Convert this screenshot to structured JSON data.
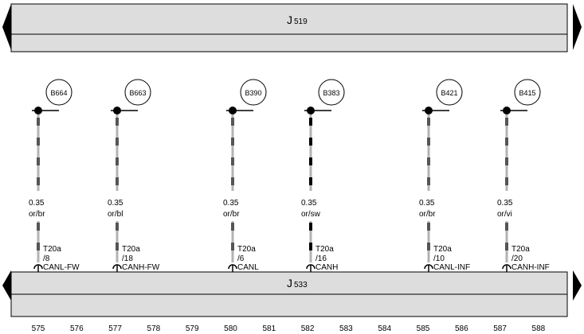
{
  "top_module": {
    "letter": "J",
    "number": "519"
  },
  "bottom_module": {
    "letter": "J",
    "number": "533"
  },
  "wires": [
    {
      "id": "B664",
      "gauge": "0.35",
      "color_code": "or/br",
      "connector": "T20a",
      "pin": "/8",
      "signal": "CANL-FW",
      "stripe": "gray"
    },
    {
      "id": "B663",
      "gauge": "0.35",
      "color_code": "or/bl",
      "connector": "T20a",
      "pin": "/18",
      "signal": "CANH-FW",
      "stripe": "gray"
    },
    {
      "id": "B390",
      "gauge": "0.35",
      "color_code": "or/br",
      "connector": "T20a",
      "pin": "/6",
      "signal": "CANL",
      "stripe": "gray"
    },
    {
      "id": "B383",
      "gauge": "0.35",
      "color_code": "or/sw",
      "connector": "T20a",
      "pin": "/16",
      "signal": "CANH",
      "stripe": "black"
    },
    {
      "id": "B421",
      "gauge": "0.35",
      "color_code": "or/br",
      "connector": "T20a",
      "pin": "/10",
      "signal": "CANL-INF",
      "stripe": "gray"
    },
    {
      "id": "B415",
      "gauge": "0.35",
      "color_code": "or/vi",
      "connector": "T20a",
      "pin": "/20",
      "signal": "CANH-INF",
      "stripe": "gray"
    }
  ],
  "grid_numbers": [
    "575",
    "576",
    "577",
    "578",
    "579",
    "580",
    "581",
    "582",
    "583",
    "584",
    "585",
    "586",
    "587",
    "588"
  ],
  "colors": {
    "module_fill": "#dddddd",
    "wire_base": "#b3b3b3",
    "stripe_gray": "#555555",
    "stripe_black": "#000000",
    "line": "#000000"
  }
}
